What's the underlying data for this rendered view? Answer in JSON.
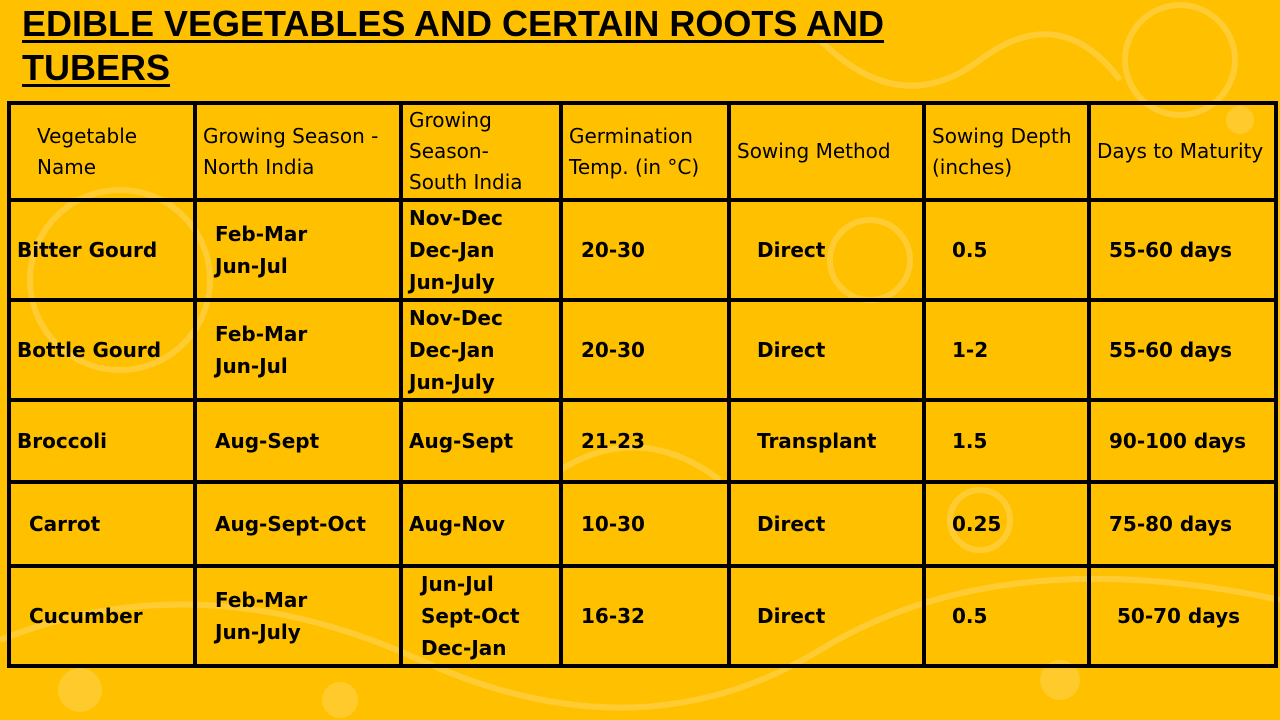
{
  "title": "EDIBLE VEGETABLES AND CERTAIN ROOTS AND TUBERS",
  "colors": {
    "background": "#FFC000",
    "decor": "#FFD85A",
    "border": "#000000"
  },
  "table": {
    "headers": [
      "Vegetable Name",
      "Growing Season - North India",
      "Growing Season- South India",
      "Germination Temp. (in °C)",
      "Sowing Method",
      "Sowing Depth (inches)",
      "Days to Maturity"
    ],
    "rows": [
      [
        "Bitter Gourd",
        "Feb-Mar\nJun-Jul",
        "Nov-Dec\nDec-Jan\nJun-July",
        "20-30",
        "Direct",
        "0.5",
        "55-60 days"
      ],
      [
        "Bottle Gourd",
        "Feb-Mar\nJun-Jul",
        "Nov-Dec\nDec-Jan\nJun-July",
        "20-30",
        "Direct",
        "1-2",
        "55-60 days"
      ],
      [
        "Broccoli",
        "Aug-Sept",
        "Aug-Sept",
        "21-23",
        "Transplant",
        "1.5",
        "90-100 days"
      ],
      [
        "Carrot",
        "Aug-Sept-Oct",
        "Aug-Nov",
        "10-30",
        "Direct",
        "0.25",
        "75-80 days"
      ],
      [
        "Cucumber",
        "Feb-Mar\nJun-July",
        "Jun-Jul\nSept-Oct\nDec-Jan",
        "16-32",
        "Direct",
        "0.5",
        "50-70 days"
      ]
    ]
  }
}
